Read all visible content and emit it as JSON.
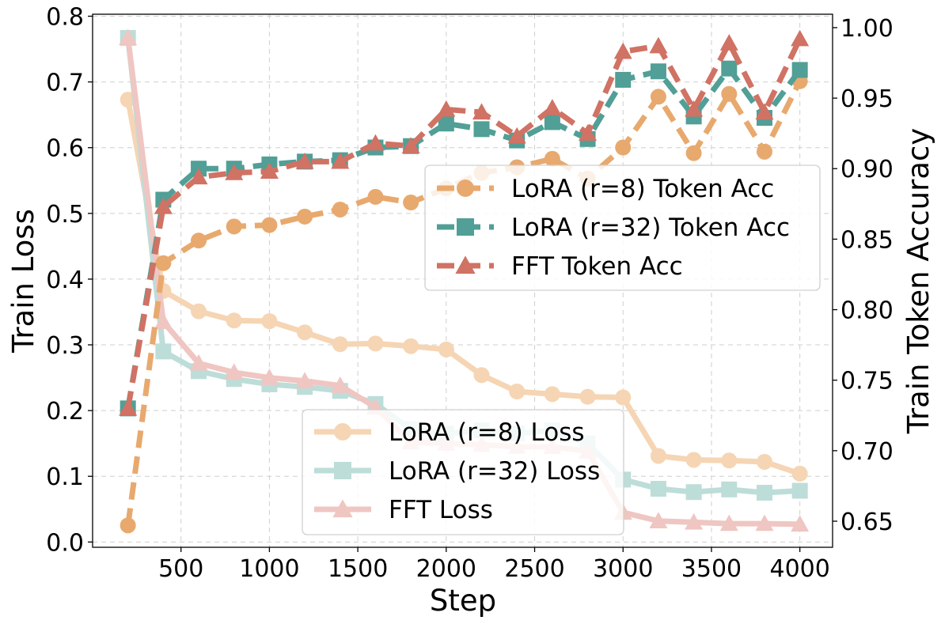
{
  "chart_data": {
    "type": "line",
    "xlabel": "Step",
    "ylabel_left": "Train Loss",
    "ylabel_right": "Train Token Accuracy",
    "xlim": [
      0,
      4185
    ],
    "ylim_left": [
      -0.008,
      0.803
    ],
    "ylim_right": [
      0.6315,
      1.0095
    ],
    "xticks": [
      500,
      1000,
      1500,
      2000,
      2500,
      3000,
      3500,
      4000
    ],
    "xtick_labels": [
      "500",
      "1000",
      "1500",
      "2000",
      "2500",
      "3000",
      "3500",
      "4000"
    ],
    "yticks_left": [
      0.0,
      0.1,
      0.2,
      0.3,
      0.4,
      0.5,
      0.6,
      0.7,
      0.8
    ],
    "ytick_labels_left": [
      "0.0",
      "0.1",
      "0.2",
      "0.3",
      "0.4",
      "0.5",
      "0.6",
      "0.7",
      "0.8"
    ],
    "yticks_right": [
      0.65,
      0.7,
      0.75,
      0.8,
      0.85,
      0.9,
      0.95,
      1.0
    ],
    "ytick_labels_right": [
      "0.65",
      "0.70",
      "0.75",
      "0.80",
      "0.85",
      "0.90",
      "0.95",
      "1.00"
    ],
    "grid": true,
    "x": [
      200,
      400,
      600,
      800,
      1000,
      1200,
      1400,
      1600,
      1800,
      2000,
      2200,
      2400,
      2600,
      2800,
      3000,
      3200,
      3400,
      3600,
      3800,
      4000
    ],
    "loss_series": [
      {
        "name": "LoRA (r=8) Loss",
        "color": "#F5D5B4",
        "marker": "circle",
        "values": [
          0.673,
          0.382,
          0.351,
          0.337,
          0.336,
          0.319,
          0.301,
          0.302,
          0.298,
          0.293,
          0.254,
          0.229,
          0.225,
          0.221,
          0.22,
          0.131,
          0.125,
          0.124,
          0.122,
          0.104
        ]
      },
      {
        "name": "LoRA (r=32) Loss",
        "color": "#BDDDD9",
        "marker": "square",
        "values": [
          0.767,
          0.29,
          0.26,
          0.248,
          0.24,
          0.236,
          0.23,
          0.21,
          0.172,
          0.165,
          0.17,
          0.165,
          0.17,
          0.15,
          0.095,
          0.081,
          0.076,
          0.08,
          0.075,
          0.078
        ]
      },
      {
        "name": "FFT Loss",
        "color": "#EFC6C2",
        "marker": "triangle",
        "values": [
          0.767,
          0.335,
          0.272,
          0.258,
          0.25,
          0.245,
          0.238,
          0.205,
          0.152,
          0.15,
          0.148,
          0.145,
          0.145,
          0.138,
          0.045,
          0.032,
          0.03,
          0.028,
          0.028,
          0.027
        ]
      }
    ],
    "acc_series": [
      {
        "name": "LoRA (r=8) Token Acc",
        "color": "#E8A96E",
        "marker": "circle",
        "values": [
          0.647,
          0.833,
          0.849,
          0.859,
          0.86,
          0.866,
          0.871,
          0.88,
          0.876,
          0.886,
          0.897,
          0.901,
          0.907,
          0.893,
          0.915,
          0.951,
          0.911,
          0.953,
          0.912,
          0.962
        ]
      },
      {
        "name": "LoRA (r=32) Token Acc",
        "color": "#519F96",
        "marker": "square",
        "values": [
          0.73,
          0.878,
          0.9,
          0.9,
          0.903,
          0.905,
          0.906,
          0.915,
          0.916,
          0.932,
          0.928,
          0.92,
          0.933,
          0.921,
          0.963,
          0.969,
          0.937,
          0.971,
          0.936,
          0.97
        ]
      },
      {
        "name": "FFT Token Acc",
        "color": "#D07264",
        "marker": "triangle",
        "values": [
          0.73,
          0.873,
          0.894,
          0.897,
          0.898,
          0.905,
          0.905,
          0.918,
          0.916,
          0.942,
          0.94,
          0.923,
          0.943,
          0.925,
          0.983,
          0.987,
          0.942,
          0.989,
          0.94,
          0.992
        ]
      }
    ],
    "legend_acc_position": "upper-right",
    "legend_loss_position": "lower-center"
  }
}
